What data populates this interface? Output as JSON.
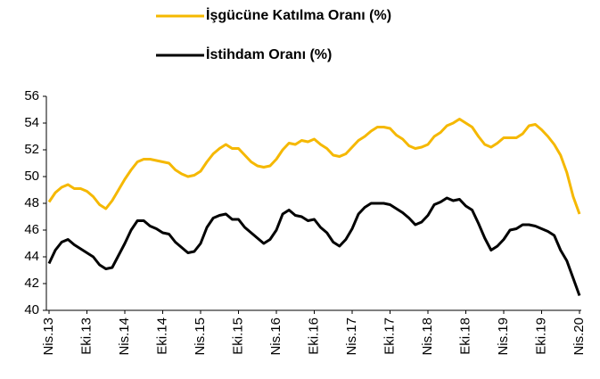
{
  "chart_data": {
    "type": "line",
    "legend": "top",
    "categories": [
      "Nis.13",
      null,
      null,
      null,
      null,
      null,
      "Eki.13",
      null,
      null,
      null,
      null,
      null,
      "Nis.14",
      null,
      null,
      null,
      null,
      null,
      "Eki.14",
      null,
      null,
      null,
      null,
      null,
      "Nis.15",
      null,
      null,
      null,
      null,
      null,
      "Eki.15",
      null,
      null,
      null,
      null,
      null,
      "Nis.16",
      null,
      null,
      null,
      null,
      null,
      "Eki.16",
      null,
      null,
      null,
      null,
      null,
      "Nis.17",
      null,
      null,
      null,
      null,
      null,
      "Eki.17",
      null,
      null,
      null,
      null,
      null,
      "Nis.18",
      null,
      null,
      null,
      null,
      null,
      "Eki.18",
      null,
      null,
      null,
      null,
      null,
      "Nis.19",
      null,
      null,
      null,
      null,
      null,
      "Eki.19",
      null,
      null,
      null,
      null,
      null,
      "Nis.20"
    ],
    "series": [
      {
        "name": "İşgücüne Katılma Oranı (%)",
        "color": "#f5b800",
        "values": [
          48.1,
          48.8,
          49.2,
          49.4,
          49.1,
          49.1,
          48.9,
          48.5,
          47.9,
          47.6,
          48.2,
          49.0,
          49.8,
          50.5,
          51.1,
          51.3,
          51.3,
          51.2,
          51.1,
          51.0,
          50.5,
          50.2,
          50.0,
          50.1,
          50.4,
          51.1,
          51.7,
          52.1,
          52.4,
          52.1,
          52.1,
          51.6,
          51.1,
          50.8,
          50.7,
          50.8,
          51.3,
          52.0,
          52.5,
          52.4,
          52.7,
          52.6,
          52.8,
          52.4,
          52.1,
          51.6,
          51.5,
          51.7,
          52.2,
          52.7,
          53.0,
          53.4,
          53.7,
          53.7,
          53.6,
          53.1,
          52.8,
          52.3,
          52.1,
          52.2,
          52.4,
          53.0,
          53.3,
          53.8,
          54.0,
          54.3,
          54.0,
          53.7,
          53.0,
          52.4,
          52.2,
          52.5,
          52.9,
          52.9,
          52.9,
          53.2,
          53.8,
          53.9,
          53.5,
          53.0,
          52.4,
          51.6,
          50.3,
          48.5,
          47.2
        ]
      },
      {
        "name": "İstihdam Oranı (%)",
        "color": "#000000",
        "values": [
          43.5,
          44.5,
          45.1,
          45.3,
          44.9,
          44.6,
          44.3,
          44.0,
          43.4,
          43.1,
          43.2,
          44.1,
          45.0,
          46.0,
          46.7,
          46.7,
          46.3,
          46.1,
          45.8,
          45.7,
          45.1,
          44.7,
          44.3,
          44.4,
          45.0,
          46.2,
          46.9,
          47.1,
          47.2,
          46.8,
          46.8,
          46.2,
          45.8,
          45.4,
          45.0,
          45.3,
          46.0,
          47.2,
          47.5,
          47.1,
          47.0,
          46.7,
          46.8,
          46.2,
          45.8,
          45.1,
          44.8,
          45.3,
          46.1,
          47.2,
          47.7,
          48.0,
          48.0,
          48.0,
          47.9,
          47.6,
          47.3,
          46.9,
          46.4,
          46.6,
          47.1,
          47.9,
          48.1,
          48.4,
          48.2,
          48.3,
          47.8,
          47.5,
          46.5,
          45.4,
          44.5,
          44.8,
          45.3,
          46.0,
          46.1,
          46.4,
          46.4,
          46.3,
          46.1,
          45.9,
          45.6,
          44.5,
          43.7,
          42.4,
          41.1
        ]
      }
    ],
    "ylim": [
      40,
      56
    ],
    "yticks": [
      40,
      42,
      44,
      46,
      48,
      50,
      52,
      54,
      56
    ],
    "grid": false
  }
}
